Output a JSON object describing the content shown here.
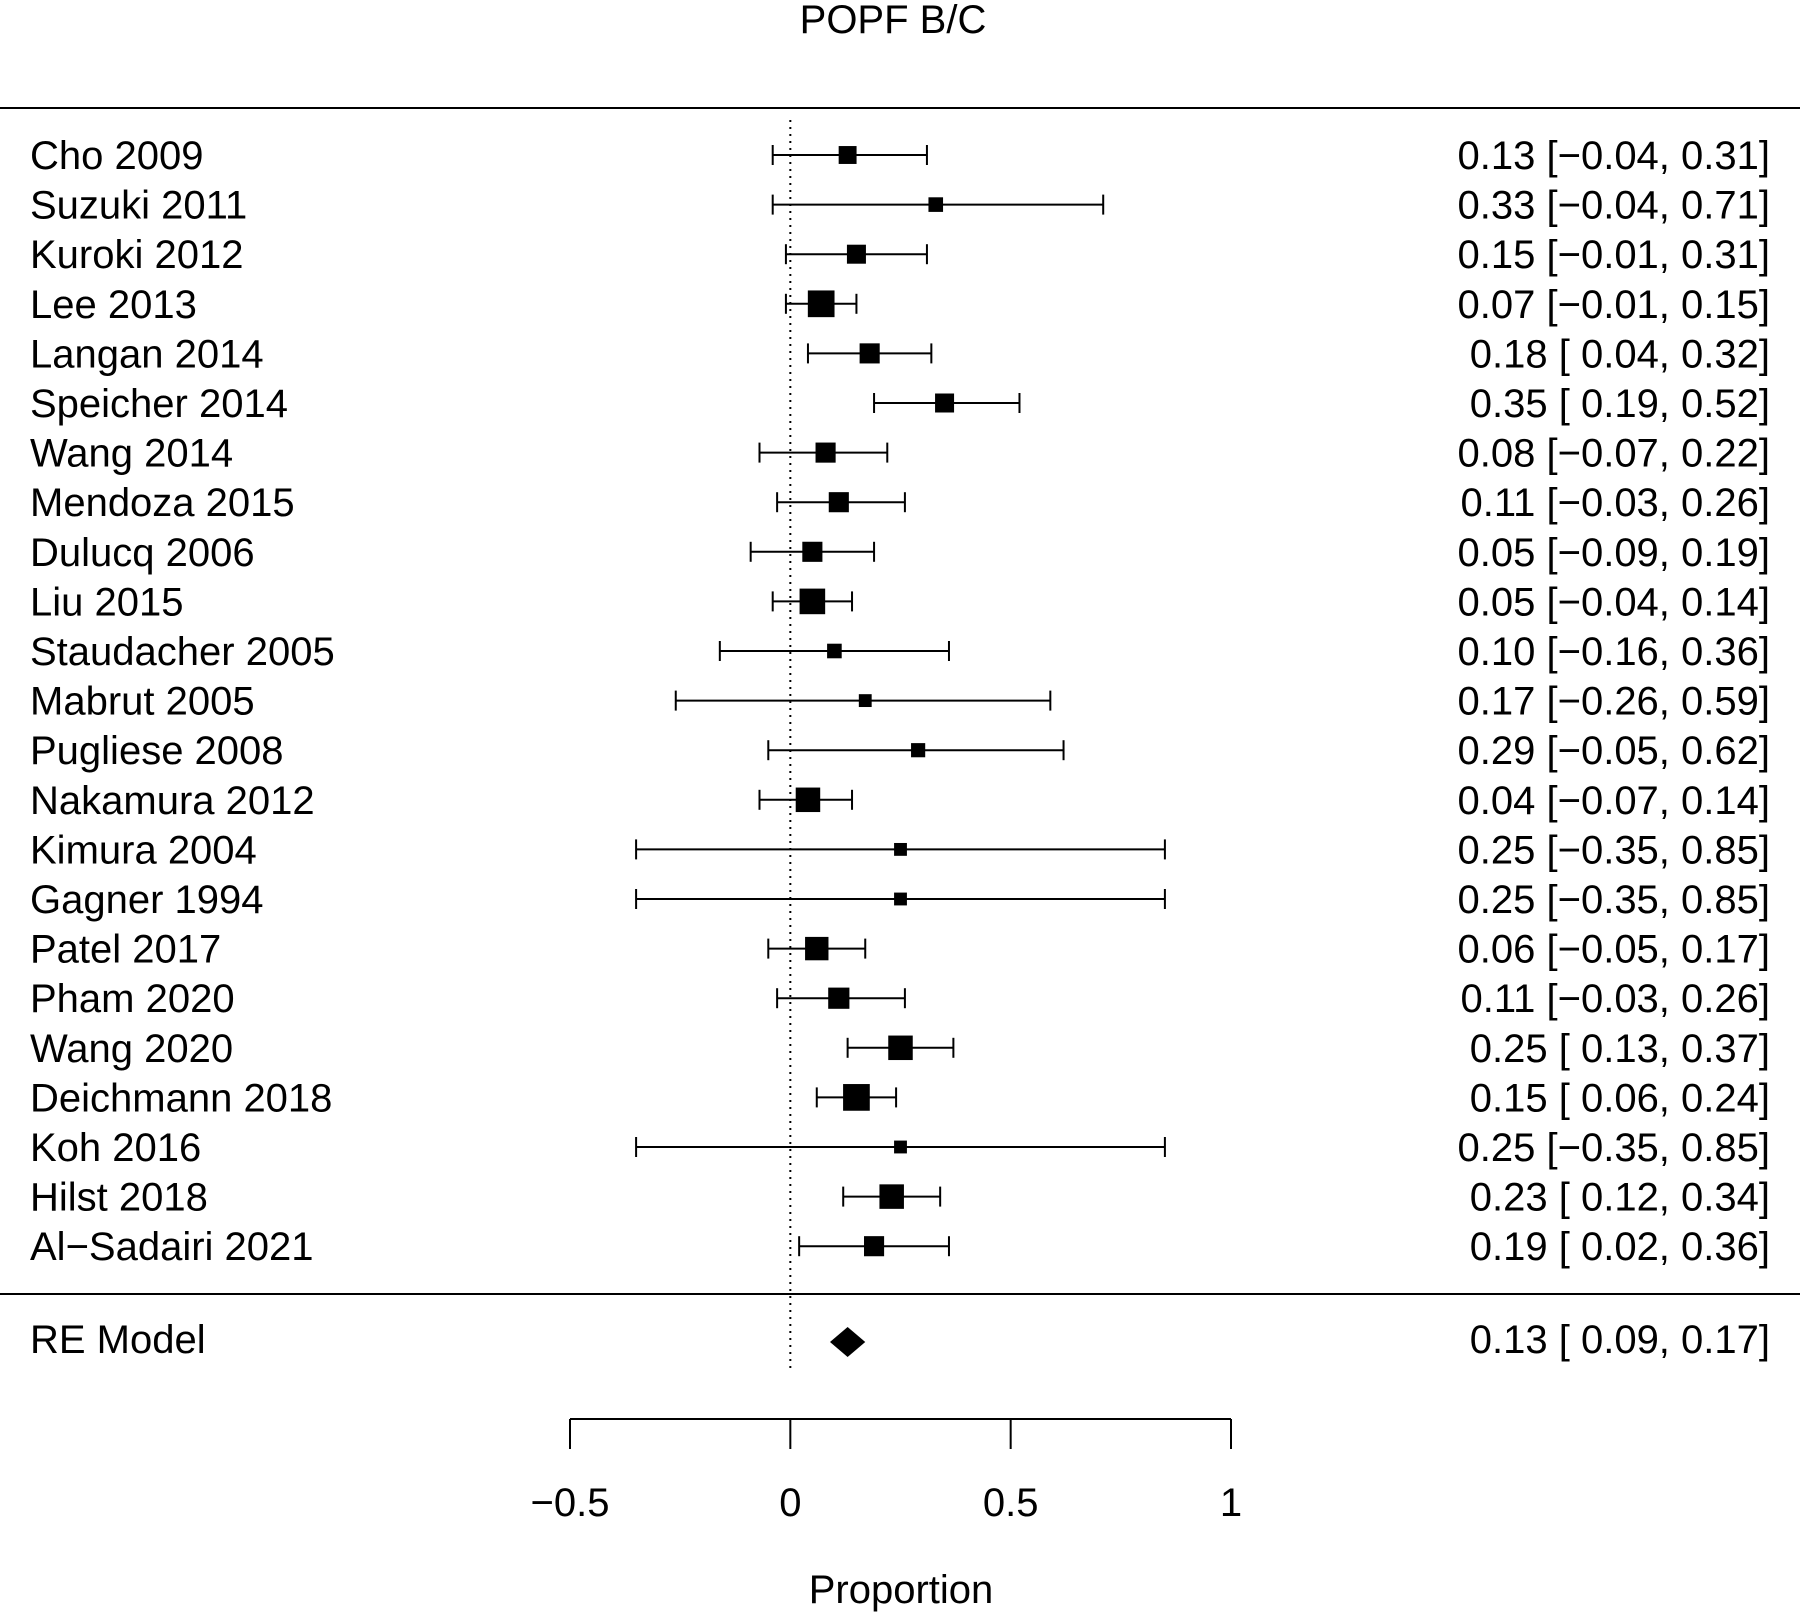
{
  "chart_data": {
    "type": "forest",
    "title": "POPF B/C",
    "xlabel": "Proportion",
    "xlim": [
      -0.5,
      1.0
    ],
    "x_ticks": [
      -0.5,
      0,
      0.5,
      1
    ],
    "x_tick_labels": [
      "−0.5",
      "0",
      "0.5",
      "1"
    ],
    "reference_line": 0,
    "studies": [
      {
        "label": "Cho 2009",
        "est": 0.13,
        "lo": -0.04,
        "hi": 0.31,
        "text": "0.13 [−0.04, 0.31]",
        "weight": 0.45
      },
      {
        "label": "Suzuki 2011",
        "est": 0.33,
        "lo": -0.04,
        "hi": 0.71,
        "text": "0.33 [−0.04, 0.71]",
        "weight": 0.3
      },
      {
        "label": "Kuroki 2012",
        "est": 0.15,
        "lo": -0.01,
        "hi": 0.31,
        "text": "0.15 [−0.01, 0.31]",
        "weight": 0.5
      },
      {
        "label": "Lee 2013",
        "est": 0.07,
        "lo": -0.01,
        "hi": 0.15,
        "text": "0.07 [−0.01, 0.15]",
        "weight": 0.85
      },
      {
        "label": "Langan  2014",
        "est": 0.18,
        "lo": 0.04,
        "hi": 0.32,
        "text": "0.18 [ 0.04, 0.32]",
        "weight": 0.55
      },
      {
        "label": "Speicher 2014",
        "est": 0.35,
        "lo": 0.19,
        "hi": 0.52,
        "text": "0.35 [ 0.19, 0.52]",
        "weight": 0.5
      },
      {
        "label": "Wang 2014",
        "est": 0.08,
        "lo": -0.07,
        "hi": 0.22,
        "text": "0.08 [−0.07, 0.22]",
        "weight": 0.55
      },
      {
        "label": "Mendoza 2015",
        "est": 0.11,
        "lo": -0.03,
        "hi": 0.26,
        "text": "0.11 [−0.03, 0.26]",
        "weight": 0.55
      },
      {
        "label": "Dulucq 2006",
        "est": 0.05,
        "lo": -0.09,
        "hi": 0.19,
        "text": "0.05 [−0.09, 0.19]",
        "weight": 0.55
      },
      {
        "label": "Liu 2015",
        "est": 0.05,
        "lo": -0.04,
        "hi": 0.14,
        "text": "0.05 [−0.04, 0.14]",
        "weight": 0.8
      },
      {
        "label": "Staudacher 2005",
        "est": 0.1,
        "lo": -0.16,
        "hi": 0.36,
        "text": "0.10 [−0.16, 0.36]",
        "weight": 0.3
      },
      {
        "label": "Mabrut 2005",
        "est": 0.17,
        "lo": -0.26,
        "hi": 0.59,
        "text": "0.17 [−0.26, 0.59]",
        "weight": 0.22
      },
      {
        "label": "Pugliese 2008",
        "est": 0.29,
        "lo": -0.05,
        "hi": 0.62,
        "text": "0.29 [−0.05, 0.62]",
        "weight": 0.28
      },
      {
        "label": "Nakamura 2012",
        "est": 0.04,
        "lo": -0.07,
        "hi": 0.14,
        "text": "0.04 [−0.07, 0.14]",
        "weight": 0.75
      },
      {
        "label": "Kimura 2004",
        "est": 0.25,
        "lo": -0.35,
        "hi": 0.85,
        "text": "0.25 [−0.35, 0.85]",
        "weight": 0.22
      },
      {
        "label": "Gagner 1994",
        "est": 0.25,
        "lo": -0.35,
        "hi": 0.85,
        "text": "0.25 [−0.35, 0.85]",
        "weight": 0.22
      },
      {
        "label": "Patel 2017",
        "est": 0.06,
        "lo": -0.05,
        "hi": 0.17,
        "text": "0.06 [−0.05, 0.17]",
        "weight": 0.7
      },
      {
        "label": "Pham 2020",
        "est": 0.11,
        "lo": -0.03,
        "hi": 0.26,
        "text": "0.11 [−0.03, 0.26]",
        "weight": 0.6
      },
      {
        "label": "Wang 2020",
        "est": 0.25,
        "lo": 0.13,
        "hi": 0.37,
        "text": "0.25 [ 0.13, 0.37]",
        "weight": 0.75
      },
      {
        "label": "Deichmann 2018",
        "est": 0.15,
        "lo": 0.06,
        "hi": 0.24,
        "text": "0.15 [ 0.06, 0.24]",
        "weight": 0.85
      },
      {
        "label": "Koh 2016",
        "est": 0.25,
        "lo": -0.35,
        "hi": 0.85,
        "text": "0.25 [−0.35, 0.85]",
        "weight": 0.22
      },
      {
        "label": "Hilst 2018",
        "est": 0.23,
        "lo": 0.12,
        "hi": 0.34,
        "text": "0.23 [ 0.12, 0.34]",
        "weight": 0.75
      },
      {
        "label": "Al−Sadairi 2021",
        "est": 0.19,
        "lo": 0.02,
        "hi": 0.36,
        "text": "0.19 [ 0.02, 0.36]",
        "weight": 0.55
      }
    ],
    "summary": {
      "label": "RE Model",
      "est": 0.13,
      "lo": 0.09,
      "hi": 0.17,
      "text": "0.13 [ 0.09, 0.17]"
    }
  }
}
